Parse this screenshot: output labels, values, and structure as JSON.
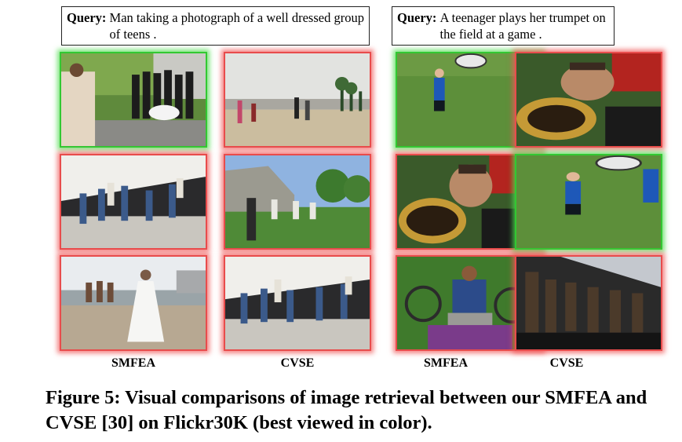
{
  "queries": {
    "left": {
      "label": "Query:",
      "text": "Man taking a photograph of a well dressed group of teens ."
    },
    "right": {
      "label": "Query:",
      "text": "A teenager plays her trumpet on the field at a game ."
    }
  },
  "grids": {
    "left": {
      "rows": [
        {
          "smfea": "correct",
          "cvse": "wrong"
        },
        {
          "smfea": "wrong",
          "cvse": "wrong"
        },
        {
          "smfea": "wrong",
          "cvse": "wrong"
        }
      ]
    },
    "right": {
      "rows": [
        {
          "smfea": "correct",
          "cvse": "wrong"
        },
        {
          "smfea": "wrong",
          "cvse": "correct"
        },
        {
          "smfea": "wrong",
          "cvse": "wrong"
        }
      ]
    }
  },
  "column_labels": {
    "left_smfea": "SMFEA",
    "left_cvse": "CVSE",
    "right_smfea": "SMFEA",
    "right_cvse": "CVSE"
  },
  "caption": "Figure 5: Visual comparisons of image retrieval between our SMFEA and CVSE [30] on Flickr30K (best viewed in color).",
  "colors": {
    "correct_border": "#32c832",
    "wrong_border": "#e84c4c"
  }
}
